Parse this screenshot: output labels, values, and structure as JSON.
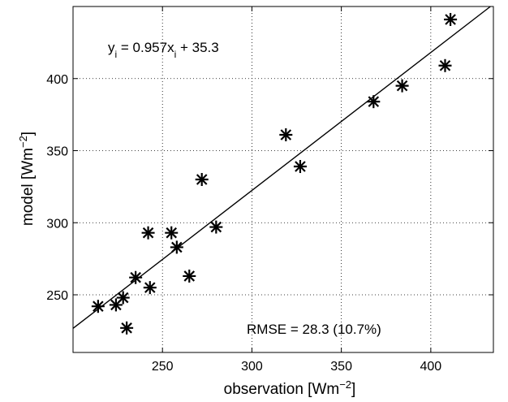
{
  "chart_data": {
    "type": "scatter",
    "title": "",
    "xlabel": {
      "base": "observation [Wm",
      "sup": "−2",
      "close": "]"
    },
    "ylabel": {
      "base": "model [Wm",
      "sup": "−2",
      "close": "]"
    },
    "xlim": [
      200,
      435
    ],
    "ylim": [
      210,
      450
    ],
    "xticks": [
      "250",
      "300",
      "350",
      "400"
    ],
    "yticks": [
      "250",
      "300",
      "350",
      "400"
    ],
    "grid": true,
    "marker": "asterisk",
    "marker_color": "#000000",
    "points": [
      {
        "x": 214,
        "y": 242
      },
      {
        "x": 224,
        "y": 243
      },
      {
        "x": 228,
        "y": 248
      },
      {
        "x": 230,
        "y": 227
      },
      {
        "x": 235,
        "y": 262
      },
      {
        "x": 242,
        "y": 293
      },
      {
        "x": 243,
        "y": 255
      },
      {
        "x": 255,
        "y": 293
      },
      {
        "x": 258,
        "y": 283
      },
      {
        "x": 265,
        "y": 263
      },
      {
        "x": 272,
        "y": 330
      },
      {
        "x": 280,
        "y": 297
      },
      {
        "x": 319,
        "y": 361
      },
      {
        "x": 327,
        "y": 339
      },
      {
        "x": 368,
        "y": 384
      },
      {
        "x": 384,
        "y": 395
      },
      {
        "x": 408,
        "y": 409
      },
      {
        "x": 411,
        "y": 441
      }
    ],
    "fit": {
      "slope": 0.957,
      "intercept": 35.3
    },
    "annotations": {
      "equation": {
        "y": "y",
        "y_sub": "i",
        "mid": " = 0.957x",
        "x_sub": "i",
        "tail": " + 35.3"
      },
      "rmse": "RMSE =  28.3 (10.7%)"
    }
  }
}
